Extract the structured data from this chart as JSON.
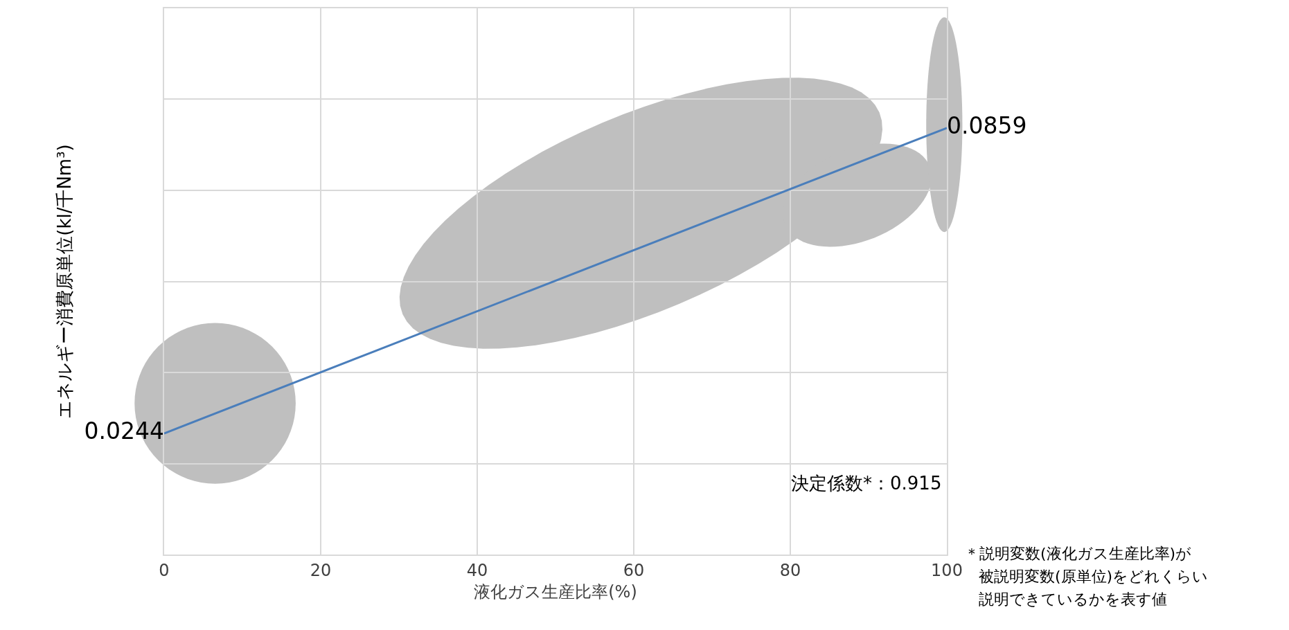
{
  "chart_data": {
    "type": "line",
    "xlabel": "液化ガス生産比率(%)",
    "ylabel": "エネルギー消費原単位(kl/千Nm³)",
    "x": [
      0,
      100
    ],
    "series": [
      {
        "color": "#4a7ebb",
        "values": [
          0.0244,
          0.0859
        ],
        "value_labels": [
          "0.0244",
          "0.0859"
        ]
      }
    ],
    "xlim": [
      0,
      100
    ],
    "xticks": [
      0,
      20,
      40,
      60,
      80,
      100
    ],
    "ylim": [
      0,
      0.11
    ],
    "yticks": [
      {
        "value": 0.0183,
        "label": null
      },
      {
        "value": 0.0367,
        "label": null
      },
      {
        "value": 0.055,
        "label": null
      },
      {
        "value": 0.0733,
        "label": null
      },
      {
        "value": 0.0917,
        "label": null
      }
    ],
    "tick_labels": "x",
    "grid": true,
    "marker": "none",
    "line_style": "solid",
    "annotations": [
      "決定係数*：0.915",
      "＊説明変数(液化ガス生産比率)が",
      "被説明変数(原単位)をどれくらい",
      "説明できているかを表す値"
    ]
  }
}
